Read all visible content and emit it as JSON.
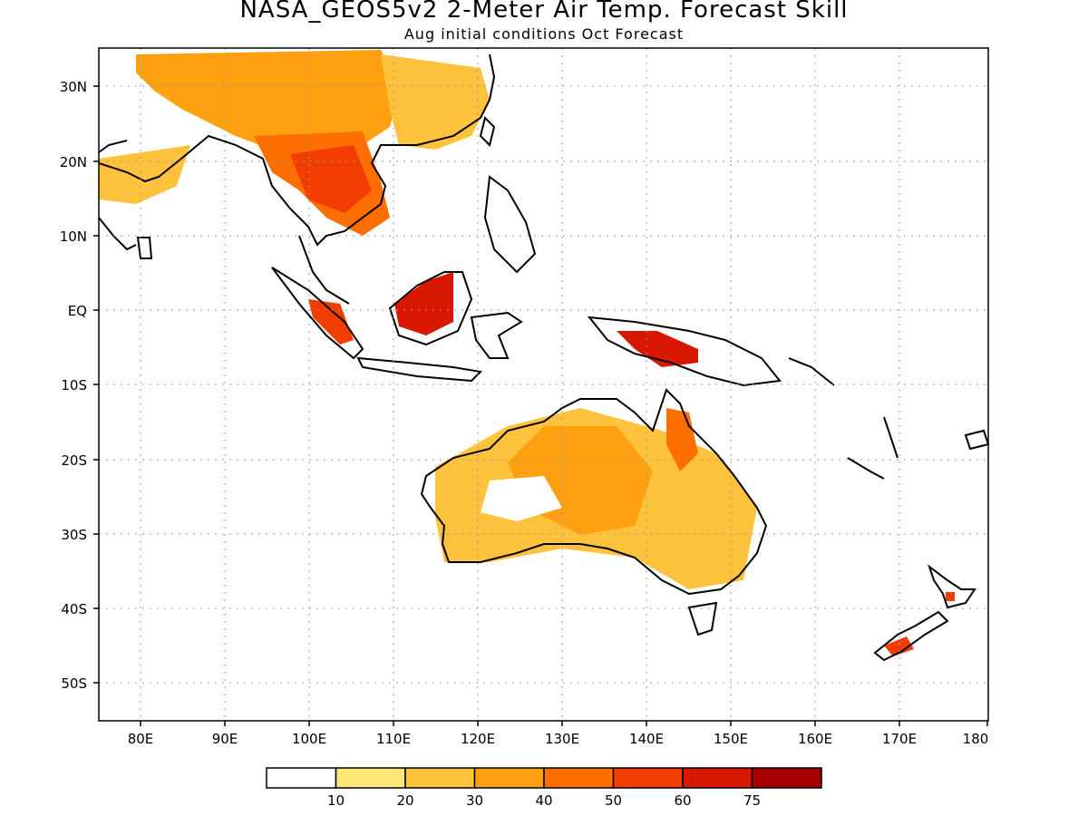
{
  "map": {
    "title": "NASA_GEOS5v2 2-Meter Air Temp. Forecast Skill",
    "subtitle": "Aug initial conditions  Oct Forecast",
    "lat_labels": [
      "30N",
      "20N",
      "10N",
      "EQ",
      "10S",
      "20S",
      "30S",
      "40S",
      "50S"
    ],
    "lon_labels": [
      "80E",
      "90E",
      "100E",
      "110E",
      "120E",
      "130E",
      "140E",
      "150E",
      "160E",
      "170E",
      "180"
    ],
    "colorbar": {
      "colors": [
        "#ffffff",
        "#ffe87a",
        "#ffc23c",
        "#ffa010",
        "#ff6e00",
        "#f23c00",
        "#d81800",
        "#a40000"
      ],
      "labels": [
        "10",
        "20",
        "30",
        "40",
        "50",
        "60",
        "75"
      ]
    }
  }
}
